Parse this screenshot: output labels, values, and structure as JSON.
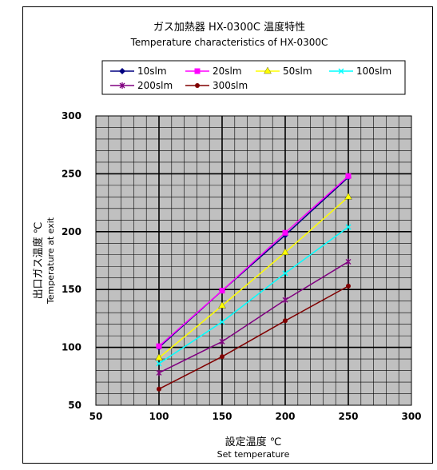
{
  "chart_data": {
    "type": "line",
    "title": "ガス加熱器 HX-0300C 温度特性",
    "subtitle": "Temperature characteristics of HX-0300C",
    "xlabel": "設定温度 ℃",
    "xlabel_en": "Set temperature",
    "ylabel": "出口ガス温度 ℃",
    "ylabel_en": "Temperature at exit",
    "xlim": [
      50,
      300
    ],
    "ylim": [
      50,
      300
    ],
    "xticks": [
      "50",
      "100",
      "150",
      "200",
      "250",
      "300"
    ],
    "yticks": [
      "50",
      "100",
      "150",
      "200",
      "250",
      "300"
    ],
    "grid": true,
    "legend_position": "top",
    "plot_background": "#c0c0c0",
    "x": [
      100,
      150,
      200,
      250
    ],
    "series": [
      {
        "name": "10slm",
        "color": "#000080",
        "marker": "diamond",
        "values": [
          100,
          149,
          197,
          247
        ]
      },
      {
        "name": "20slm",
        "color": "#ff00ff",
        "marker": "square",
        "values": [
          101,
          149,
          199,
          248
        ]
      },
      {
        "name": "50slm",
        "color": "#ffff00",
        "marker": "triangle",
        "values": [
          91,
          136,
          182,
          230
        ]
      },
      {
        "name": "100slm",
        "color": "#00ffff",
        "marker": "x",
        "values": [
          86,
          122,
          164,
          204
        ]
      },
      {
        "name": "200slm",
        "color": "#800080",
        "marker": "star",
        "values": [
          78,
          105,
          141,
          174
        ]
      },
      {
        "name": "300slm",
        "color": "#800000",
        "marker": "circle",
        "values": [
          64,
          92,
          123,
          153
        ]
      }
    ]
  }
}
